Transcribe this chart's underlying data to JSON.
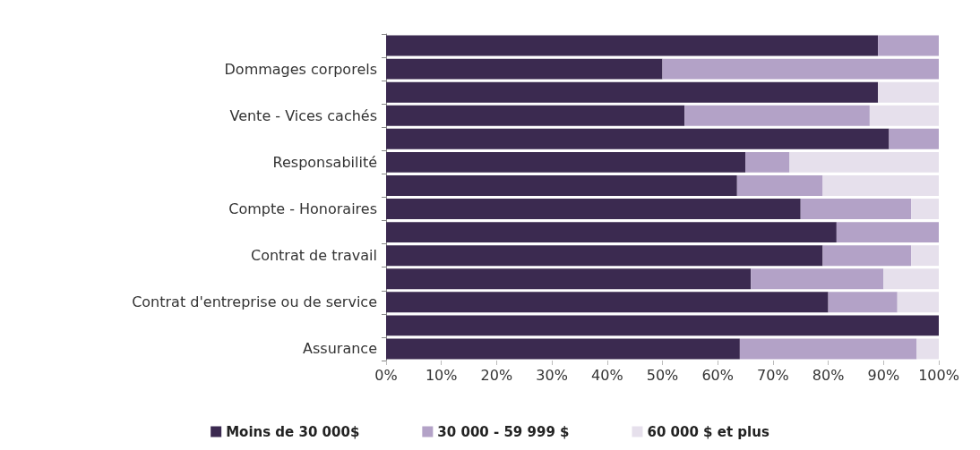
{
  "chart_data": {
    "type": "bar",
    "orientation": "horizontal",
    "stacked": true,
    "categories": [
      null,
      "Dommages corporels",
      null,
      "Vente - Vices cachés",
      null,
      "Responsabilité",
      null,
      "Compte - Honoraires",
      null,
      "Contrat de travail",
      null,
      "Contrat d'entreprise ou de service",
      null,
      "Assurance"
    ],
    "series": [
      {
        "name": "Moins de 30 000$",
        "color": "#3b2a50",
        "values": [
          89,
          50,
          89,
          54,
          91,
          65,
          63.5,
          75,
          81.5,
          79,
          66,
          80,
          100,
          64
        ]
      },
      {
        "name": "30 000 - 59 999 $",
        "color": "#b3a2c7",
        "values": [
          11,
          50,
          0,
          33.5,
          9,
          8,
          15.5,
          20,
          18.5,
          16,
          24,
          12.5,
          0,
          32
        ]
      },
      {
        "name": "60 000 $ et plus",
        "color": "#e6e0ec",
        "values": [
          0,
          0,
          11,
          12.5,
          0,
          27,
          21,
          5,
          0,
          5,
          10,
          7.5,
          0,
          4
        ]
      }
    ],
    "xlim": [
      0,
      100
    ],
    "xticks": [
      {
        "value": 0,
        "label": "0%"
      },
      {
        "value": 10,
        "label": "10%"
      },
      {
        "value": 20,
        "label": "20%"
      },
      {
        "value": 30,
        "label": "30%"
      },
      {
        "value": 40,
        "label": "40%"
      },
      {
        "value": 50,
        "label": "50%"
      },
      {
        "value": 60,
        "label": "60%"
      },
      {
        "value": 70,
        "label": "70%"
      },
      {
        "value": 80,
        "label": "80%"
      },
      {
        "value": 90,
        "label": "90%"
      },
      {
        "value": 100,
        "label": "100%"
      }
    ],
    "grid": false,
    "legend": "bottom"
  }
}
